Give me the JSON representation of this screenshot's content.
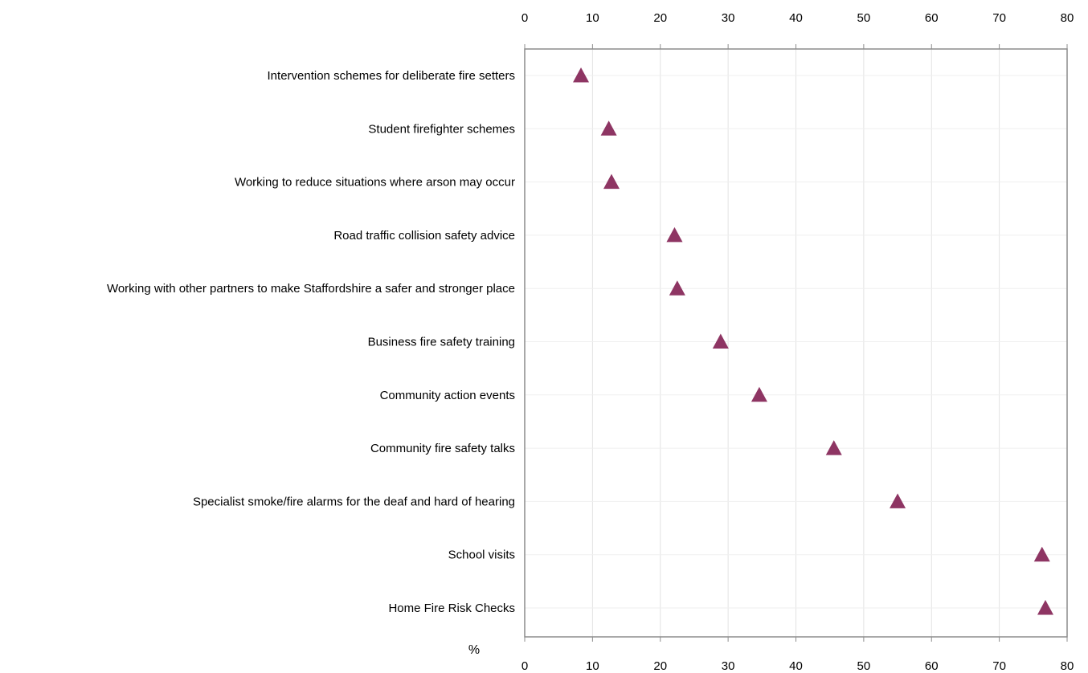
{
  "chart_data": {
    "type": "scatter",
    "marker": "triangle",
    "marker_color": "#8e3563",
    "unit_label": "%",
    "xlim": [
      0,
      80
    ],
    "x_ticks": [
      0,
      10,
      20,
      30,
      40,
      50,
      60,
      70,
      80
    ],
    "tick_labels": [
      "0",
      "10",
      "20",
      "30",
      "40",
      "50",
      "60",
      "70",
      "80"
    ],
    "grid": true,
    "categories": [
      "Intervention schemes for deliberate fire setters",
      "Student firefighter schemes",
      "Working to reduce situations where arson may occur",
      "Road traffic collision safety advice",
      "Working with other partners to make Staffordshire a safer and stronger place",
      "Business fire safety training",
      "Community action events",
      "Community fire safety talks",
      "Specialist smoke/fire alarms for the deaf and hard of hearing",
      "School visits",
      "Home Fire Risk Checks"
    ],
    "values": [
      8.3,
      12.4,
      12.8,
      22.1,
      22.5,
      28.9,
      34.6,
      45.6,
      55.0,
      76.3,
      76.8
    ]
  }
}
